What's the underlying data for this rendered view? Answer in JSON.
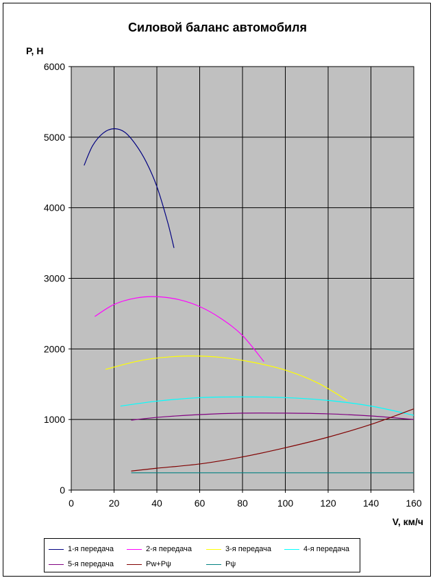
{
  "chart_data": {
    "type": "line",
    "title": "Силовой баланс автомобиля",
    "ylabel": "P, Н",
    "xlabel": "V, км/ч",
    "xlim": [
      0,
      160
    ],
    "ylim": [
      0,
      6000
    ],
    "x_ticks": [
      "0",
      "20",
      "40",
      "60",
      "80",
      "100",
      "120",
      "140",
      "160"
    ],
    "y_ticks": [
      "0",
      "1000",
      "2000",
      "3000",
      "4000",
      "5000",
      "6000"
    ],
    "grid": true,
    "plot_background": "#c0c0c0",
    "legend_position": "bottom",
    "series": [
      {
        "name": "1-я передача",
        "color": "#000080",
        "x": [
          6,
          10,
          15,
          20,
          25,
          30,
          35,
          40,
          45,
          48
        ],
        "y": [
          4600,
          4880,
          5060,
          5120,
          5070,
          4900,
          4650,
          4300,
          3800,
          3430
        ]
      },
      {
        "name": "2-я передача",
        "color": "#ff00ff",
        "x": [
          11,
          20,
          30,
          40,
          50,
          60,
          70,
          80,
          90
        ],
        "y": [
          2460,
          2630,
          2720,
          2740,
          2700,
          2600,
          2430,
          2190,
          1820
        ]
      },
      {
        "name": "3-я передача",
        "color": "#ffff00",
        "x": [
          16,
          30,
          40,
          55,
          70,
          85,
          100,
          115,
          129
        ],
        "y": [
          1710,
          1820,
          1870,
          1900,
          1880,
          1810,
          1700,
          1520,
          1270
        ]
      },
      {
        "name": "4-я передача",
        "color": "#00ffff",
        "x": [
          23,
          40,
          60,
          80,
          100,
          120,
          140,
          160
        ],
        "y": [
          1190,
          1260,
          1310,
          1320,
          1310,
          1270,
          1190,
          1060
        ]
      },
      {
        "name": "5-я передача",
        "color": "#800080",
        "x": [
          28,
          40,
          60,
          80,
          100,
          120,
          140,
          160
        ],
        "y": [
          990,
          1030,
          1070,
          1090,
          1090,
          1080,
          1050,
          1000
        ]
      },
      {
        "name": "Pw+Pψ",
        "color": "#800000",
        "x": [
          28,
          40,
          60,
          80,
          100,
          120,
          140,
          160
        ],
        "y": [
          270,
          310,
          370,
          470,
          600,
          750,
          930,
          1150
        ]
      },
      {
        "name": "Pψ",
        "color": "#008080",
        "x": [
          28,
          160
        ],
        "y": [
          245,
          245
        ]
      }
    ]
  }
}
